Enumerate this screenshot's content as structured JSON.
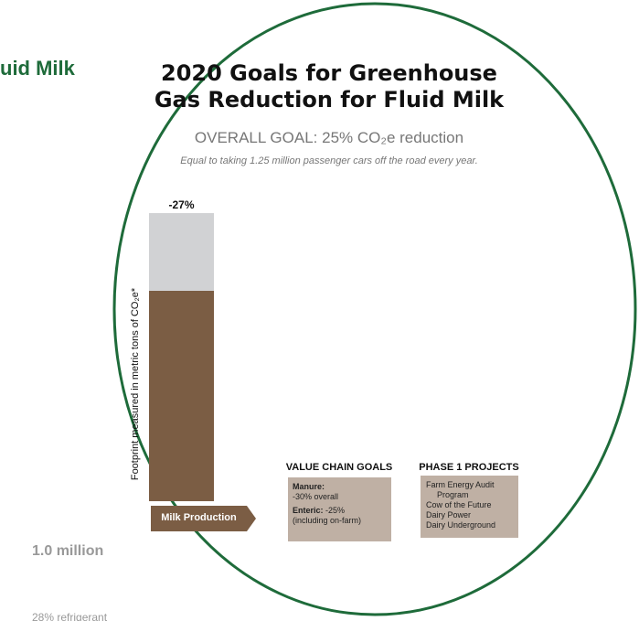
{
  "side": {
    "heading": "uid Milk",
    "stat": "1.0 million",
    "note": "28% refrigerant"
  },
  "header": {
    "title_lines": [
      "2020 Goals for Greenhouse",
      "Gas Reduction for Fluid Milk"
    ],
    "overall_goal": "OVERALL GOAL: 25% CO₂e reduction",
    "equivalent": "Equal to taking 1.25 million passenger cars off the road every year."
  },
  "bar": {
    "label": "-27%",
    "axis_label": "Footprint measured in metric tons of CO₂e*",
    "stage": "Milk Production"
  },
  "value_chain": {
    "title": "VALUE CHAIN GOALS",
    "lines": [
      [
        "Manure:",
        "-30% overall"
      ],
      [
        "Enteric:",
        "-25%",
        "(including on-farm)"
      ]
    ]
  },
  "phase1": {
    "title": "PHASE 1 PROJECTS",
    "lines": [
      "Farm Energy Audit",
      "Program",
      "Cow of the Future",
      "Dairy Power",
      "Dairy Underground"
    ]
  }
}
